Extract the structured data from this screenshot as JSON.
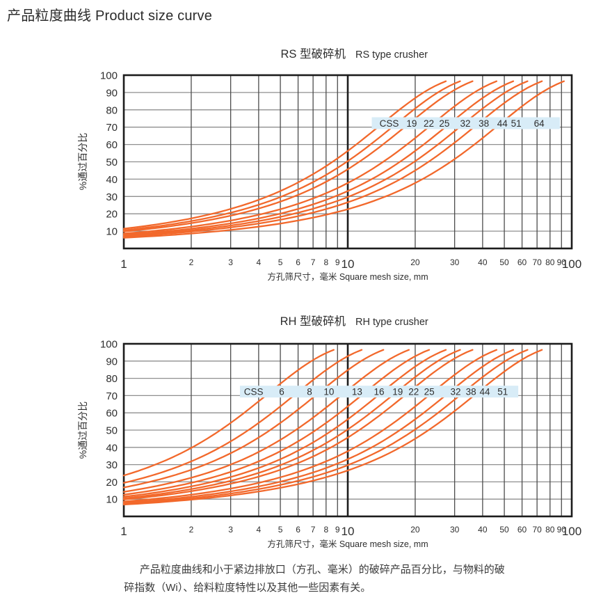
{
  "page": {
    "title": "产品粒度曲线 Product size curve"
  },
  "caption": {
    "line1": "产品粒度曲线和小于紧边排放口（方孔、毫米）的破碎产品百分比，与物料的破",
    "line2": "碎指数（Wi）、给料粒度特性以及其他一些因素有关。"
  },
  "axes": {
    "x_label": "方孔筛尺寸，毫米 Square mesh size, mm",
    "y_label": "%通过百分比",
    "xscale": "log",
    "xlim": [
      1,
      100
    ],
    "ylim": [
      0,
      100
    ],
    "x_ticks": [
      {
        "v": 1,
        "major": true
      },
      {
        "v": 2
      },
      {
        "v": 3
      },
      {
        "v": 4
      },
      {
        "v": 5
      },
      {
        "v": 6
      },
      {
        "v": 7
      },
      {
        "v": 8
      },
      {
        "v": 9
      },
      {
        "v": 10,
        "major": true
      },
      {
        "v": 20
      },
      {
        "v": 30
      },
      {
        "v": 40
      },
      {
        "v": 50
      },
      {
        "v": 60
      },
      {
        "v": 70
      },
      {
        "v": 80
      },
      {
        "v": 90
      },
      {
        "v": 100,
        "major": true
      }
    ],
    "y_ticks": [
      100,
      90,
      80,
      70,
      60,
      50,
      40,
      30,
      20,
      10
    ]
  },
  "colors": {
    "curve": "#f2682b",
    "band": "#d8ecf7",
    "grid_h": "#8f8f8f",
    "grid_v": "#4b4b4b",
    "axis": "#1c1c1c",
    "text": "#333333"
  },
  "chart_data": [
    {
      "type": "line",
      "id": "rs",
      "title_zh": "RS 型破碎机",
      "title_en": "RS type crusher",
      "xlabel": "方孔筛尺寸，毫米 Square mesh size, mm",
      "ylabel": "%通过百分比",
      "xscale": "log",
      "xlim": [
        1,
        100
      ],
      "ylim": [
        0,
        100
      ],
      "grid": true,
      "legend_band_label": "CSS",
      "series": [
        {
          "name": "CSS 19",
          "css_mm": 19
        },
        {
          "name": "CSS 22",
          "css_mm": 22
        },
        {
          "name": "CSS 25",
          "css_mm": 25
        },
        {
          "name": "CSS 32",
          "css_mm": 32
        },
        {
          "name": "CSS 38",
          "css_mm": 38
        },
        {
          "name": "CSS 44",
          "css_mm": 44
        },
        {
          "name": "CSS 51",
          "css_mm": 51
        },
        {
          "name": "CSS 64",
          "css_mm": 64
        }
      ],
      "curve_model": {
        "form": "swebrec",
        "formula": "P(x)=100/(1+(ln(xmax/x)/ln(xmax/x50))^b)",
        "xmax_factor": 2.1,
        "x50_factor": 0.45,
        "b": 2.35,
        "plot_until_percent": 96.5,
        "anchor_points_note": "each curve: ~10% passing at 1mm, ~54% at 0.5*CSS, ~85% at CSS, ~96% at 1.45*CSS"
      },
      "band_mm": [
        12.8,
        88.5
      ],
      "band_center_percent": 72.3,
      "css_word_pos_mm": 15.3,
      "label_positions_mm": [
        19.3,
        23.0,
        27.0,
        33.5,
        40.5,
        49.0,
        56.5,
        71.5
      ]
    },
    {
      "type": "line",
      "id": "rh",
      "title_zh": "RH 型破碎机",
      "title_en": "RH type crusher",
      "xlabel": "方孔筛尺寸，毫米 Square mesh size, mm",
      "ylabel": "%通过百分比",
      "xscale": "log",
      "xlim": [
        1,
        100
      ],
      "ylim": [
        0,
        100
      ],
      "grid": true,
      "legend_band_label": "CSS",
      "series": [
        {
          "name": "CSS 6",
          "css_mm": 6
        },
        {
          "name": "CSS 8",
          "css_mm": 8
        },
        {
          "name": "CSS 10",
          "css_mm": 10
        },
        {
          "name": "CSS 13",
          "css_mm": 13
        },
        {
          "name": "CSS 16",
          "css_mm": 16
        },
        {
          "name": "CSS 19",
          "css_mm": 19
        },
        {
          "name": "CSS 22",
          "css_mm": 22
        },
        {
          "name": "CSS 25",
          "css_mm": 25
        },
        {
          "name": "CSS 32",
          "css_mm": 32
        },
        {
          "name": "CSS 38",
          "css_mm": 38
        },
        {
          "name": "CSS 44",
          "css_mm": 44
        },
        {
          "name": "CSS 51",
          "css_mm": 51
        }
      ],
      "curve_model": {
        "form": "swebrec",
        "formula": "P(x)=100/(1+(ln(xmax/x)/ln(xmax/x50))^b)",
        "xmax_factor": 2.1,
        "x50_factor": 0.45,
        "b": 2.35,
        "plot_until_percent": 96.5,
        "anchor_points_note": "each curve: ~7-24% passing at 1mm, ~54% at 0.5*CSS, ~85% at CSS, ~96% at 1.45*CSS"
      },
      "band_mm": [
        3.3,
        57.7
      ],
      "band_center_percent": 72.3,
      "css_word_pos_mm": 3.8,
      "label_positions_mm": [
        5.07,
        6.75,
        8.24,
        11.0,
        13.8,
        16.7,
        19.7,
        23.1,
        30.3,
        35.5,
        40.9,
        49.2
      ]
    }
  ]
}
